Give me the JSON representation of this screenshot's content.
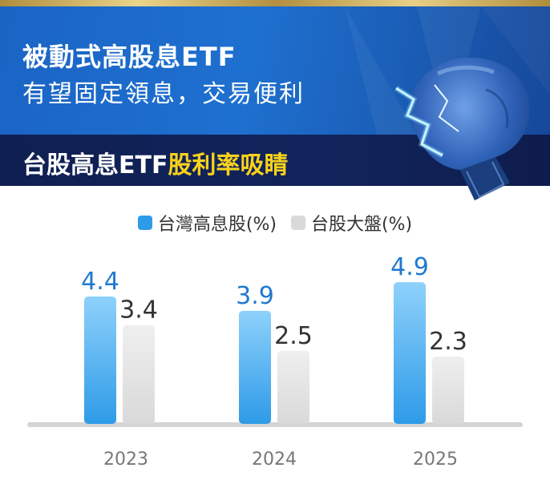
{
  "header": {
    "title_line1": "被動式高股息ETF",
    "title_line2": "有望固定領息，交易便利",
    "subtitle_white": "台股高息ETF",
    "subtitle_yellow": "股利率吸睛"
  },
  "colors": {
    "series1": "#2e9be8",
    "series1_light": "#8ed1fb",
    "series2": "#d9d9d9",
    "series2_light": "#efefef",
    "value1": "#1f7ad0",
    "value2": "#333333",
    "baseline": "#d4d4d4",
    "highlight": "#f8d21a"
  },
  "icons": {
    "legend_marker": "square-swatch",
    "decor": "boxing-glove-with-lightning"
  },
  "chart_data": {
    "type": "bar",
    "categories": [
      "2023",
      "2024",
      "2025"
    ],
    "series": [
      {
        "name": "台灣高息股(%)",
        "values": [
          4.4,
          3.9,
          4.9
        ]
      },
      {
        "name": "台股大盤(%)",
        "values": [
          3.4,
          2.5,
          2.3
        ]
      }
    ],
    "value_labels": [
      [
        "4.4",
        "3.9",
        "4.9"
      ],
      [
        "3.4",
        "2.5",
        "2.3"
      ]
    ],
    "ylim": [
      0,
      6
    ],
    "legend_position": "top-center",
    "grid": false
  }
}
